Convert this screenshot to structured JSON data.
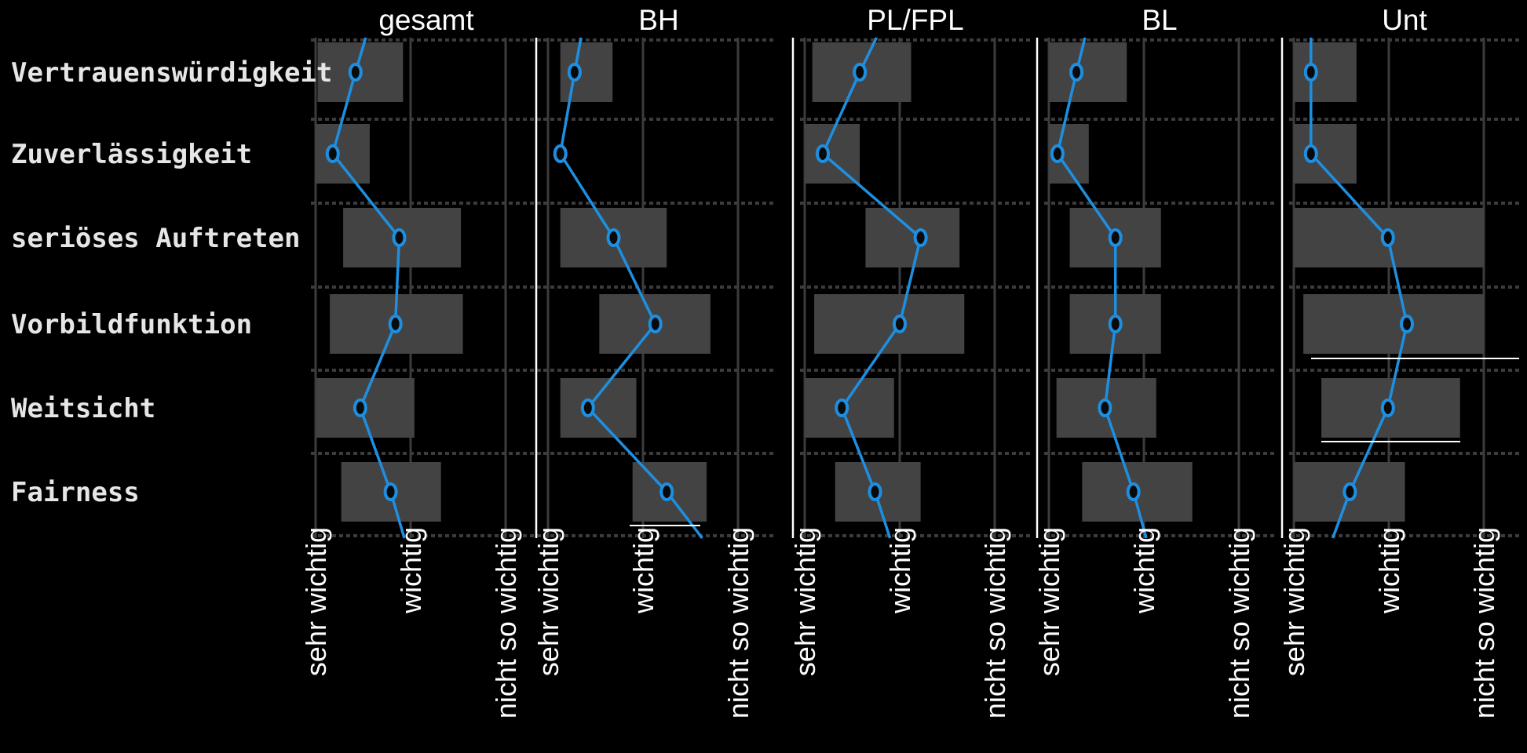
{
  "chart_data": {
    "type": "line",
    "categories": [
      "Vertrauenswürdigkeit",
      "Zuverlässigkeit",
      "seriöses Auftreten",
      "Vorbildfunktion",
      "Weitsicht",
      "Fairness"
    ],
    "xticks": [
      "sehr wichtig",
      "wichtig",
      "nicht so wichtig"
    ],
    "xlim": [
      1,
      3
    ],
    "colors": {
      "series": "#1e8fe0",
      "range_bar": "#434343",
      "background": "#000000",
      "grid": "#3c3c3c"
    },
    "panels": [
      {
        "title": "gesamt",
        "values": [
          1.42,
          1.18,
          1.88,
          1.84,
          1.47,
          1.79
        ],
        "ranges": [
          [
            1.02,
            1.92
          ],
          [
            1.0,
            1.57
          ],
          [
            1.29,
            2.53
          ],
          [
            1.15,
            2.55
          ],
          [
            1.01,
            2.04
          ],
          [
            1.27,
            2.32
          ]
        ]
      },
      {
        "title": "BH",
        "values": [
          1.28,
          1.13,
          1.69,
          2.13,
          1.42,
          2.25
        ],
        "ranges": [
          [
            1.13,
            1.68
          ],
          [
            1.0,
            1.0
          ],
          [
            1.13,
            2.25
          ],
          [
            1.54,
            2.71
          ],
          [
            1.13,
            1.93
          ],
          [
            1.89,
            2.67
          ]
        ]
      },
      {
        "title": "PL/FPL",
        "values": [
          1.58,
          1.19,
          2.22,
          2.0,
          1.39,
          1.74
        ],
        "ranges": [
          [
            1.08,
            2.12
          ],
          [
            1.0,
            1.58
          ],
          [
            1.64,
            2.63
          ],
          [
            1.1,
            2.68
          ],
          [
            1.0,
            1.94
          ],
          [
            1.32,
            2.22
          ]
        ]
      },
      {
        "title": "BL",
        "values": [
          1.29,
          1.09,
          1.7,
          1.7,
          1.59,
          1.89
        ],
        "ranges": [
          [
            1.0,
            1.82
          ],
          [
            1.0,
            1.42
          ],
          [
            1.22,
            2.18
          ],
          [
            1.22,
            2.18
          ],
          [
            1.08,
            2.13
          ],
          [
            1.35,
            2.51
          ]
        ]
      },
      {
        "title": "Unt",
        "values": [
          1.18,
          1.18,
          1.99,
          2.19,
          1.99,
          1.59
        ],
        "ranges": [
          [
            1.0,
            1.66
          ],
          [
            1.0,
            1.66
          ],
          [
            1.0,
            3.0
          ],
          [
            1.1,
            3.0
          ],
          [
            1.29,
            2.75
          ],
          [
            1.0,
            2.17
          ]
        ]
      }
    ]
  }
}
